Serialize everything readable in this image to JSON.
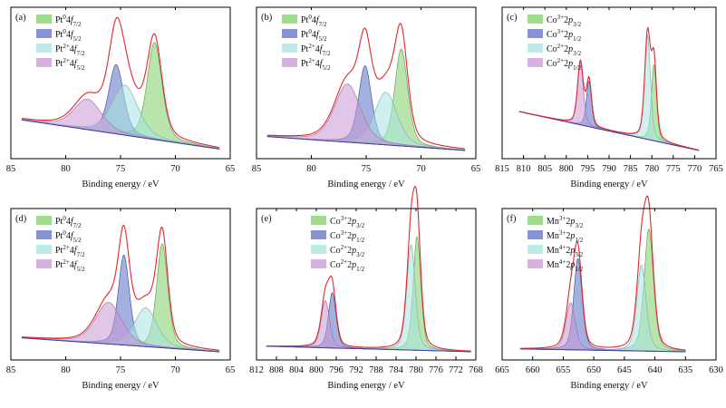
{
  "chart_data": [
    {
      "type": "area",
      "panel_label": "(a)",
      "xlabel": "Binding energy / eV",
      "x_ticks": [
        85,
        80,
        75,
        70,
        65
      ],
      "xlim": [
        85,
        65
      ],
      "baseline": {
        "x": [
          84,
          66
        ],
        "y": [
          0.24,
          0.03
        ]
      },
      "envelope_height": 1.0,
      "legend": [
        "Pt<sup>0</sup>4<i>f</i><sub>7/2</sub>",
        "Pt<sup>0</sup>4<i>f</i><sub>5/2</sub>",
        "Pt<sup>2+</sup>4<i>f</i><sub>7/2</sub>",
        "Pt<sup>2+</sup>4<i>f</i><sub>5/2</sub>"
      ],
      "series": [
        {
          "name": "Pt<sup>0</sup>4<i>f</i><sub>7/2</sub>",
          "color": "#7fcf6a",
          "center": 71.9,
          "height": 0.7,
          "width": 0.8
        },
        {
          "name": "Pt<sup>0</sup>4<i>f</i><sub>5/2</sub>",
          "color": "#5a6fc4",
          "center": 75.4,
          "height": 0.5,
          "width": 0.8
        },
        {
          "name": "Pt<sup>2+</sup>4<i>f</i><sub>7/2</sub>",
          "color": "#a8e4e0",
          "center": 74.6,
          "height": 0.36,
          "width": 1.4
        },
        {
          "name": "Pt<sup>2+</sup>4<i>f</i><sub>5/2</sub>",
          "color": "#c998d6",
          "center": 78.0,
          "height": 0.22,
          "width": 1.5
        }
      ]
    },
    {
      "type": "area",
      "panel_label": "(b)",
      "xlabel": "Binding energy / eV",
      "x_ticks": [
        85,
        80,
        75,
        70,
        65
      ],
      "xlim": [
        85,
        65
      ],
      "baseline": {
        "x": [
          84,
          66
        ],
        "y": [
          0.12,
          0.02
        ]
      },
      "envelope_height": 1.0,
      "legend": [
        "Pt<sup>0</sup>4<i>f</i><sub>7/2</sub>",
        "Pt<sup>0</sup>4<i>f</i><sub>5/2</sub>",
        "Pt<sup>2+</sup>4<i>f</i><sub>7/2</sub>",
        "Pt<sup>2+</sup>4<i>f</i><sub>5/2</sub>"
      ],
      "series": [
        {
          "name": "Pt<sup>0</sup>4<i>f</i><sub>7/2</sub>",
          "color": "#7fcf6a",
          "center": 71.8,
          "height": 0.7,
          "width": 0.7
        },
        {
          "name": "Pt<sup>0</sup>4<i>f</i><sub>5/2</sub>",
          "color": "#5a6fc4",
          "center": 75.1,
          "height": 0.56,
          "width": 0.7
        },
        {
          "name": "Pt<sup>2+</sup>4<i>f</i><sub>7/2</sub>",
          "color": "#a8e4e0",
          "center": 73.2,
          "height": 0.38,
          "width": 1.2
        },
        {
          "name": "Pt<sup>2+</sup>4<i>f</i><sub>5/2</sub>",
          "color": "#c998d6",
          "center": 76.7,
          "height": 0.42,
          "width": 1.4
        }
      ]
    },
    {
      "type": "area",
      "panel_label": "(c)",
      "xlabel": "Binding energy / eV",
      "x_ticks": [
        815,
        810,
        805,
        800,
        795,
        790,
        785,
        780,
        775,
        770,
        765
      ],
      "xlim": [
        815,
        765
      ],
      "baseline": {
        "x": [
          811,
          769
        ],
        "y": [
          0.3,
          0.02
        ]
      },
      "envelope_height": 1.0,
      "legend": [
        "Co<sup>3+</sup>2<i>p</i><sub>3/2</sub>",
        "Co<sup>3+</sup>2<i>p</i><sub>1/2</sub>",
        "Co<sup>2+</sup>2<i>p</i><sub>3/2</sub>",
        "Co<sup>2+</sup>2<i>p</i><sub>1/2</sub>"
      ],
      "series": [
        {
          "name": "Co<sup>3+</sup>2<i>p</i><sub>3/2</sub>",
          "color": "#7fcf6a",
          "center": 779.5,
          "height": 0.55,
          "width": 0.7
        },
        {
          "name": "Co<sup>3+</sup>2<i>p</i><sub>1/2</sub>",
          "color": "#5a6fc4",
          "center": 794.7,
          "height": 0.33,
          "width": 0.7
        },
        {
          "name": "Co<sup>2+</sup>2<i>p</i><sub>3/2</sub>",
          "color": "#a8e4e0",
          "center": 781.0,
          "height": 0.75,
          "width": 0.8
        },
        {
          "name": "Co<sup>2+</sup>2<i>p</i><sub>1/2</sub>",
          "color": "#c998d6",
          "center": 796.7,
          "height": 0.45,
          "width": 0.8
        }
      ]
    },
    {
      "type": "area",
      "panel_label": "(d)",
      "xlabel": "Binding energy / eV",
      "x_ticks": [
        85,
        80,
        75,
        70,
        65
      ],
      "xlim": [
        85,
        65
      ],
      "baseline": {
        "x": [
          84,
          66
        ],
        "y": [
          0.12,
          0.02
        ]
      },
      "envelope_height": 1.0,
      "legend": [
        "Pt<sup>0</sup>4<i>f</i><sub>7/2</sub>",
        "Pt<sup>0</sup>4<i>f</i><sub>5/2</sub>",
        "Pt<sup>2+</sup>4<i>f</i><sub>7/2</sub>",
        "Pt<sup>2+</sup>4<i>f</i><sub>5/2</sub>"
      ],
      "series": [
        {
          "name": "Pt<sup>0</sup>4<i>f</i><sub>7/2</sub>",
          "color": "#7fcf6a",
          "center": 71.2,
          "height": 0.75,
          "width": 0.6
        },
        {
          "name": "Pt<sup>0</sup>4<i>f</i><sub>5/2</sub>",
          "color": "#5a6fc4",
          "center": 74.7,
          "height": 0.65,
          "width": 0.6
        },
        {
          "name": "Pt<sup>2+</sup>4<i>f</i><sub>7/2</sub>",
          "color": "#a8e4e0",
          "center": 72.7,
          "height": 0.28,
          "width": 1.2
        },
        {
          "name": "Pt<sup>2+</sup>4<i>f</i><sub>5/2</sub>",
          "color": "#c998d6",
          "center": 76.1,
          "height": 0.3,
          "width": 1.4
        }
      ]
    },
    {
      "type": "area",
      "panel_label": "(e)",
      "xlabel": "Binding energy / eV",
      "x_ticks": [
        812,
        808,
        804,
        800,
        796,
        792,
        788,
        784,
        780,
        776,
        772,
        768
      ],
      "xlim": [
        812,
        768
      ],
      "baseline": {
        "x": [
          810,
          769
        ],
        "y": [
          0.06,
          0.02
        ]
      },
      "envelope_height": 1.0,
      "legend": [
        "Co<sup>3+</sup>2<i>p</i><sub>3/2</sub>",
        "Co<sup>3+</sup>2<i>p</i><sub>1/2</sub>",
        "Co<sup>2+</sup>2<i>p</i><sub>3/2</sub>",
        "Co<sup>2+</sup>2<i>p</i><sub>1/2</sub>"
      ],
      "series": [
        {
          "name": "Co<sup>3+</sup>2<i>p</i><sub>3/2</sub>",
          "color": "#7fcf6a",
          "center": 779.8,
          "height": 0.82,
          "width": 0.9
        },
        {
          "name": "Co<sup>3+</sup>2<i>p</i><sub>1/2</sub>",
          "color": "#5a6fc4",
          "center": 796.8,
          "height": 0.4,
          "width": 0.9
        },
        {
          "name": "Co<sup>2+</sup>2<i>p</i><sub>3/2</sub>",
          "color": "#a8e4e0",
          "center": 781.0,
          "height": 0.76,
          "width": 1.0
        },
        {
          "name": "Co<sup>2+</sup>2<i>p</i><sub>1/2</sub>",
          "color": "#c998d6",
          "center": 798.2,
          "height": 0.34,
          "width": 1.0
        }
      ]
    },
    {
      "type": "area",
      "panel_label": "(f)",
      "xlabel": "Binding energy / eV",
      "x_ticks": [
        665,
        660,
        655,
        650,
        645,
        640,
        635,
        630
      ],
      "xlim": [
        665,
        630
      ],
      "baseline": {
        "x": [
          662,
          635
        ],
        "y": [
          0.04,
          0.02
        ]
      },
      "envelope_height": 1.0,
      "legend": [
        "Mn<sup>3+</sup>2<i>p</i><sub>3/2</sub>",
        "Mn<sup>3+</sup>2<i>p</i><sub>1/2</sub>",
        "Mn<sup>4+</sup>2<i>p</i><sub>3/2</sub>",
        "Mn<sup>4+</sup>2<i>p</i><sub>1/2</sub>"
      ],
      "series": [
        {
          "name": "Mn<sup>3+</sup>2<i>p</i><sub>3/2</sub>",
          "color": "#7fcf6a",
          "center": 641.0,
          "height": 0.88,
          "width": 0.9
        },
        {
          "name": "Mn<sup>3+</sup>2<i>p</i><sub>1/2</sub>",
          "color": "#5a6fc4",
          "center": 652.6,
          "height": 0.66,
          "width": 0.8
        },
        {
          "name": "Mn<sup>4+</sup>2<i>p</i><sub>3/2</sub>",
          "color": "#a8e4e0",
          "center": 642.2,
          "height": 0.62,
          "width": 0.9
        },
        {
          "name": "Mn<sup>4+</sup>2<i>p</i><sub>1/2</sub>",
          "color": "#c998d6",
          "center": 653.8,
          "height": 0.34,
          "width": 0.9
        }
      ]
    }
  ]
}
